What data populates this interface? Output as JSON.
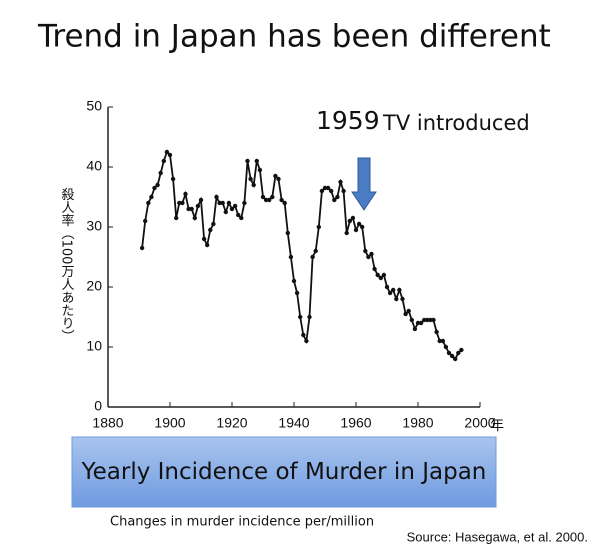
{
  "title": "Trend in Japan has been different",
  "chart_data": {
    "type": "line",
    "y_label": "殺人率（100万人あたり）",
    "x_unit": "年",
    "annotation": {
      "year": "1959",
      "text": "TV introduced"
    },
    "x": [
      1891,
      1892,
      1893,
      1894,
      1895,
      1896,
      1897,
      1898,
      1899,
      1900,
      1901,
      1902,
      1903,
      1904,
      1905,
      1906,
      1907,
      1908,
      1909,
      1910,
      1911,
      1912,
      1913,
      1914,
      1915,
      1916,
      1917,
      1918,
      1919,
      1920,
      1921,
      1922,
      1923,
      1924,
      1925,
      1926,
      1927,
      1928,
      1929,
      1930,
      1931,
      1932,
      1933,
      1934,
      1935,
      1936,
      1937,
      1938,
      1939,
      1940,
      1941,
      1942,
      1943,
      1944,
      1945,
      1946,
      1947,
      1948,
      1949,
      1950,
      1951,
      1952,
      1953,
      1954,
      1955,
      1956,
      1957,
      1958,
      1959,
      1960,
      1961,
      1962,
      1963,
      1964,
      1965,
      1966,
      1967,
      1968,
      1969,
      1970,
      1971,
      1972,
      1973,
      1974,
      1975,
      1976,
      1977,
      1978,
      1979,
      1980,
      1981,
      1982,
      1983,
      1984,
      1985,
      1986,
      1987,
      1988,
      1989,
      1990,
      1991,
      1992,
      1993,
      1994
    ],
    "values": [
      26.5,
      31,
      34,
      35,
      36.5,
      37,
      39,
      41,
      42.5,
      42,
      38,
      31.5,
      34,
      34,
      35.5,
      33,
      33,
      31.5,
      33.5,
      34.5,
      28,
      27,
      29.5,
      30.5,
      35,
      34,
      34,
      32.5,
      34,
      33,
      33.5,
      32,
      31.5,
      34,
      41,
      38,
      37,
      41,
      39.5,
      35,
      34.5,
      34.5,
      35,
      38.5,
      38,
      34.5,
      34,
      29,
      25,
      21,
      19,
      15,
      12,
      11,
      15,
      25,
      26,
      30,
      36,
      36.5,
      36.5,
      36,
      34.5,
      35,
      37.5,
      36,
      29,
      31,
      31.5,
      29.5,
      30.5,
      30,
      26,
      25,
      25.5,
      23,
      22,
      21.5,
      22,
      20,
      19,
      19.5,
      18,
      19.5,
      18,
      15.5,
      16,
      14.5,
      13,
      14,
      14,
      14.5,
      14.5,
      14.5,
      14.5,
      12.5,
      11,
      11,
      10,
      9,
      8.5,
      8,
      9,
      9.5
    ],
    "color": "#111111",
    "xlim": [
      1880,
      2000
    ],
    "xticks": [
      1880,
      1900,
      1920,
      1940,
      1960,
      1980,
      2000
    ],
    "ylim": [
      0,
      50
    ],
    "yticks": [
      0,
      10,
      20,
      30,
      40,
      50
    ],
    "box_title": "Yearly Incidence of Murder in Japan",
    "caption": "Changes in murder incidence per/million",
    "source": "Source: Hasegawa, et al. 2000."
  }
}
